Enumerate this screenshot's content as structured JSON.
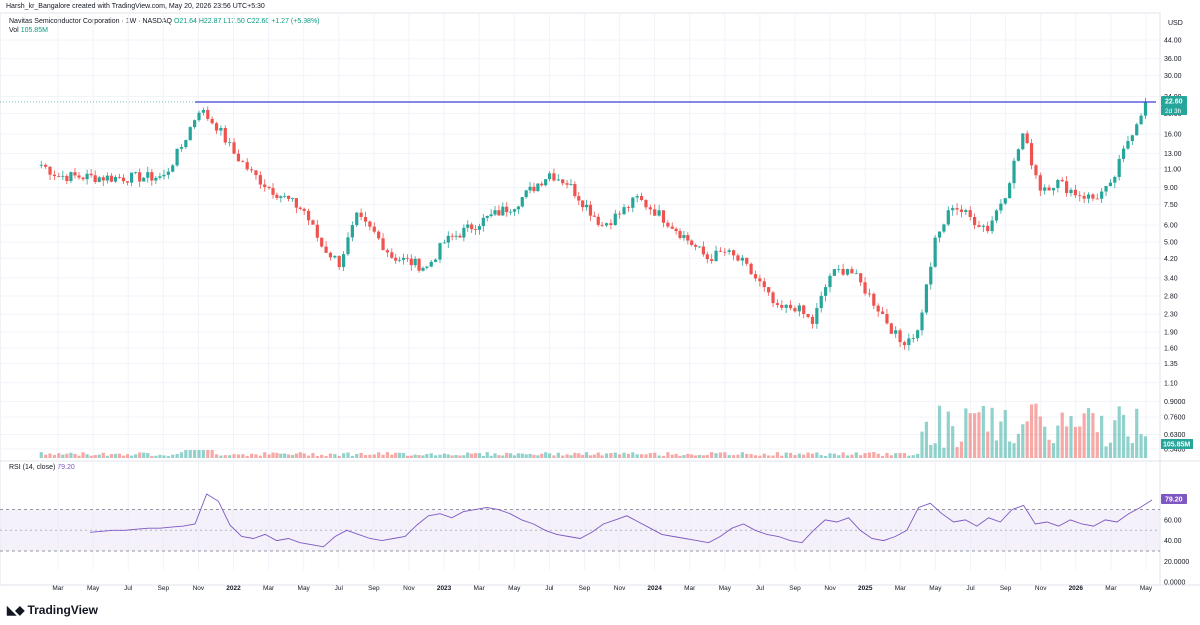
{
  "header": {
    "creator_line": "Harsh_kr_Bangalore created with TradingView.com, May 20, 2026 23:56 UTC+5:30"
  },
  "legend": {
    "symbol": "Navitas Semiconductor Corporation · 1W · NASDAQ",
    "ohlc": "O21.64 H22.87 L17.50 C22.60 +1.27 (+5.98%)",
    "vol_label": "Vol",
    "vol_value": "105.85M",
    "rsi_label": "RSI (14, close)",
    "rsi_value": "79.20"
  },
  "brand": {
    "name": "TradingView"
  },
  "colors": {
    "up": "#26a69a",
    "down": "#ef5350",
    "rsi": "#7e57c2",
    "resistance": "#3f3fd6"
  },
  "chart_data": [
    {
      "type": "candlestick",
      "title": "Navitas Semiconductor Corporation · 1W · NASDAQ",
      "currency": "USD",
      "y_scale": "log",
      "price_ticks": [
        "44.00",
        "36.00",
        "30.00",
        "24.00",
        "20.00",
        "16.00",
        "13.00",
        "11.00",
        "9.00",
        "7.50",
        "6.00",
        "5.00",
        "4.20",
        "3.40",
        "2.80",
        "2.30",
        "1.90",
        "1.60",
        "1.35",
        "1.10",
        "0.9000",
        "0.7600",
        "0.6300",
        "0.5400"
      ],
      "last_price_label": "22.60",
      "countdown_label": "2d 3h",
      "x_ticks": [
        "Mar",
        "May",
        "Jul",
        "Sep",
        "Nov",
        "2022",
        "Mar",
        "May",
        "Jul",
        "Sep",
        "Nov",
        "2023",
        "Mar",
        "May",
        "Jul",
        "Sep",
        "Nov",
        "2024",
        "Mar",
        "May",
        "Jul",
        "Sep",
        "Nov",
        "2025",
        "Mar",
        "May",
        "Jul",
        "Sep",
        "Nov",
        "2026",
        "Mar",
        "May"
      ],
      "resistance_level": 22.6,
      "price_path": [
        [
          "2021-02",
          11.5
        ],
        [
          "2021-03",
          10.2
        ],
        [
          "2021-06",
          10.0
        ],
        [
          "2021-09",
          10.1
        ],
        [
          "2021-10",
          14.0
        ],
        [
          "2021-11",
          21.0
        ],
        [
          "2021-12",
          17.5
        ],
        [
          "2022-01",
          13.0
        ],
        [
          "2022-02",
          10.5
        ],
        [
          "2022-03",
          9.0
        ],
        [
          "2022-05",
          7.0
        ],
        [
          "2022-06",
          4.8
        ],
        [
          "2022-07",
          4.0
        ],
        [
          "2022-08",
          6.5
        ],
        [
          "2022-09",
          5.5
        ],
        [
          "2022-10",
          4.3
        ],
        [
          "2022-12",
          3.8
        ],
        [
          "2023-01",
          5.0
        ],
        [
          "2023-03",
          6.2
        ],
        [
          "2023-05",
          7.5
        ],
        [
          "2023-07",
          10.5
        ],
        [
          "2023-08",
          9.5
        ],
        [
          "2023-10",
          6.0
        ],
        [
          "2023-11",
          6.8
        ],
        [
          "2023-12",
          8.0
        ],
        [
          "2024-01",
          7.0
        ],
        [
          "2024-02",
          6.0
        ],
        [
          "2024-04",
          4.2
        ],
        [
          "2024-05",
          4.5
        ],
        [
          "2024-06",
          4.0
        ],
        [
          "2024-07",
          3.2
        ],
        [
          "2024-08",
          2.4
        ],
        [
          "2024-09",
          2.5
        ],
        [
          "2024-10",
          2.1
        ],
        [
          "2024-11",
          3.5
        ],
        [
          "2024-12",
          3.8
        ],
        [
          "2025-01",
          3.0
        ],
        [
          "2025-02",
          2.3
        ],
        [
          "2025-03",
          1.7
        ],
        [
          "2025-04",
          1.9
        ],
        [
          "2025-05",
          5.0
        ],
        [
          "2025-06",
          7.5
        ],
        [
          "2025-07",
          6.5
        ],
        [
          "2025-08",
          5.8
        ],
        [
          "2025-09",
          8.5
        ],
        [
          "2025-10",
          16.0
        ],
        [
          "2025-11",
          9.0
        ],
        [
          "2025-12",
          9.5
        ],
        [
          "2026-01",
          8.5
        ],
        [
          "2026-02",
          8.0
        ],
        [
          "2026-03",
          9.0
        ],
        [
          "2026-04",
          15.0
        ],
        [
          "2026-05",
          22.6
        ]
      ],
      "volume_ticks": [],
      "volume_last_label": "105.85M",
      "grid": true
    },
    {
      "type": "line",
      "title": "RSI (14, close)",
      "y_ticks": [
        "80.00",
        "60.00",
        "40.00",
        "20.0000",
        "0.0000"
      ],
      "band": [
        30,
        70
      ],
      "last_value_label": "79.20",
      "values": [
        48,
        49,
        50,
        50,
        51,
        52,
        52,
        53,
        54,
        56,
        85,
        78,
        55,
        44,
        42,
        46,
        40,
        42,
        38,
        36,
        34,
        44,
        50,
        46,
        42,
        40,
        42,
        44,
        55,
        64,
        66,
        62,
        68,
        70,
        72,
        70,
        66,
        60,
        56,
        50,
        46,
        44,
        42,
        48,
        56,
        60,
        64,
        58,
        52,
        46,
        44,
        42,
        40,
        38,
        44,
        52,
        56,
        50,
        46,
        44,
        40,
        38,
        50,
        60,
        58,
        62,
        50,
        42,
        40,
        44,
        50,
        72,
        76,
        66,
        58,
        60,
        54,
        62,
        58,
        70,
        74,
        56,
        58,
        54,
        60,
        56,
        54,
        60,
        58,
        66,
        72,
        79.2
      ]
    }
  ]
}
